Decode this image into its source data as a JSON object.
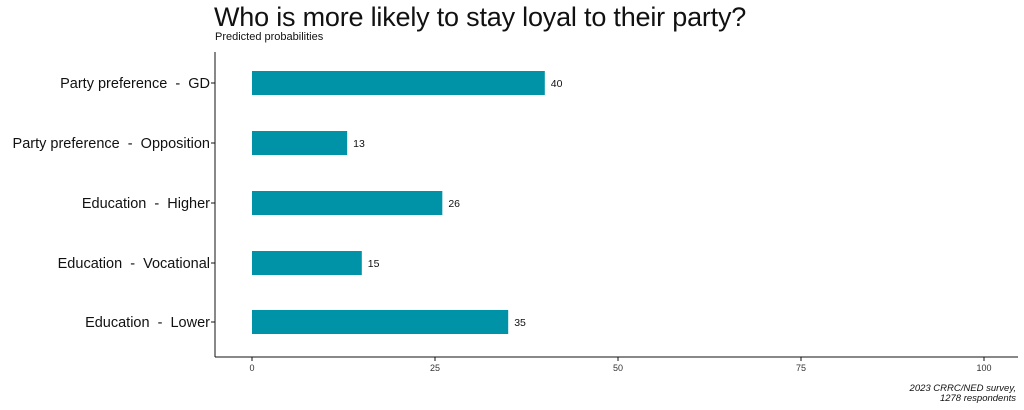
{
  "title": "Who is more likely to stay loyal to their party?",
  "subtitle": "Predicted probabilities",
  "caption": [
    "2023 CRRC/NED survey,",
    "1278 respondents"
  ],
  "colors": {
    "bar": "#0092a6",
    "axis": "#111111"
  },
  "chart_data": {
    "type": "bar",
    "orientation": "horizontal",
    "title": "Who is more likely to stay loyal to their party?",
    "subtitle": "Predicted probabilities",
    "categories": [
      "Party preference  -  GD",
      "Party preference  -  Opposition",
      "Education  -  Higher",
      "Education  -  Vocational",
      "Education  -  Lower"
    ],
    "values": [
      40,
      13,
      26,
      15,
      35
    ],
    "data_labels": [
      "40",
      "13",
      "26",
      "15",
      "35"
    ],
    "xlim": [
      0,
      100
    ],
    "xticks": [
      0,
      25,
      50,
      75,
      100
    ],
    "xlabel": "",
    "ylabel": "",
    "grid": false,
    "legend": "none"
  }
}
